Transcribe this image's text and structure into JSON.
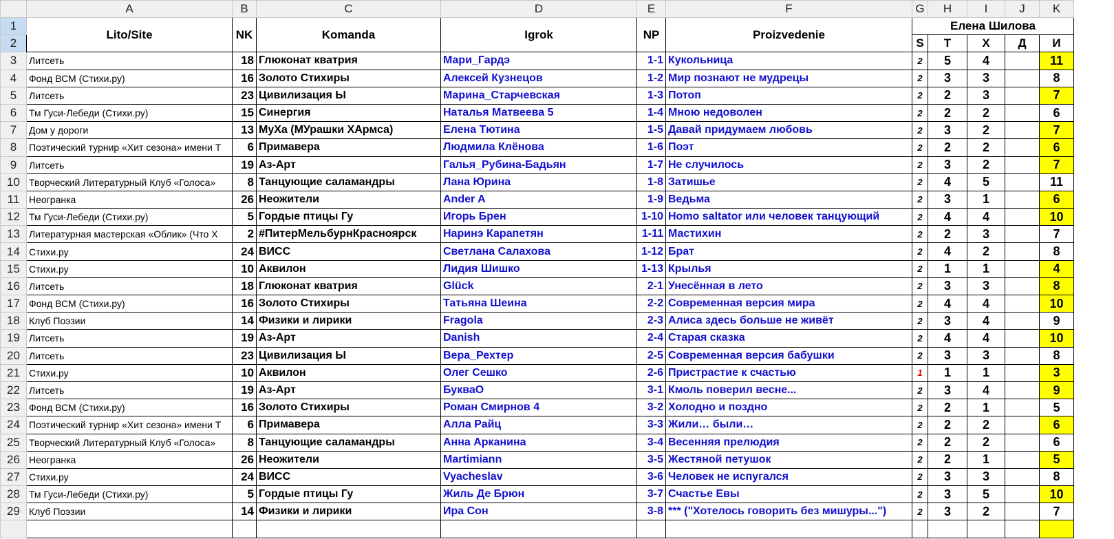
{
  "columns": [
    "A",
    "B",
    "C",
    "D",
    "E",
    "F",
    "G",
    "H",
    "I",
    "J",
    "K"
  ],
  "headers": {
    "lito": "Lito/Site",
    "nk": "NK",
    "komanda": "Komanda",
    "igrok": "Igrok",
    "np": "NP",
    "proizvedenie": "Proizvedenie",
    "judge": "Елена Шилова",
    "s": "S",
    "t": "T",
    "x": "Х",
    "d": "Д",
    "i": "И"
  },
  "highlight_color": "#ffff00",
  "rows": [
    {
      "n": "3",
      "lito": "Литсеть",
      "nk": "18",
      "komanda": "Глюконат кватрия",
      "igrok": "Мари_Гардэ",
      "np": "1-1",
      "work": "Кукольница",
      "s": "2",
      "t": "5",
      "x": "4",
      "d": "",
      "i": "11",
      "hi": true
    },
    {
      "n": "4",
      "lito": "Фонд ВСМ (Стихи.ру)",
      "nk": "16",
      "komanda": "Золото Стихиры",
      "igrok": "Алексей Кузнецов",
      "np": "1-2",
      "work": "Мир познают не мудрецы",
      "s": "2",
      "t": "3",
      "x": "3",
      "d": "",
      "i": "8",
      "hi": false
    },
    {
      "n": "5",
      "lito": "Литсеть",
      "nk": "23",
      "komanda": "Цивилизация Ы",
      "igrok": "Марина_Старчевская",
      "np": "1-3",
      "work": "Потоп",
      "s": "2",
      "t": "2",
      "x": "3",
      "d": "",
      "i": "7",
      "hi": true
    },
    {
      "n": "6",
      "lito": "Тм Гуси-Лебеди (Стихи.ру)",
      "nk": "15",
      "komanda": "Синергия",
      "igrok": "Наталья Матвеева 5",
      "np": "1-4",
      "work": "Мною недоволен",
      "s": "2",
      "t": "2",
      "x": "2",
      "d": "",
      "i": "6",
      "hi": false
    },
    {
      "n": "7",
      "lito": "Дом у дороги",
      "nk": "13",
      "komanda": "МуХа (МУрашки ХАрмса)",
      "igrok": "Елена Тютина",
      "np": "1-5",
      "work": "Давай придумаем любовь",
      "s": "2",
      "t": "3",
      "x": "2",
      "d": "",
      "i": "7",
      "hi": true
    },
    {
      "n": "8",
      "lito": "Поэтический турнир «Хит сезона» имени Т",
      "nk": "6",
      "komanda": "Примавера",
      "igrok": "Людмила Клёнова",
      "np": "1-6",
      "work": "Поэт",
      "s": "2",
      "t": "2",
      "x": "2",
      "d": "",
      "i": "6",
      "hi": true
    },
    {
      "n": "9",
      "lito": "Литсеть",
      "nk": "19",
      "komanda": "Аз-Арт",
      "igrok": "Галья_Рубина-Бадьян",
      "np": "1-7",
      "work": "Не случилось",
      "s": "2",
      "t": "3",
      "x": "2",
      "d": "",
      "i": "7",
      "hi": true
    },
    {
      "n": "10",
      "lito": "Творческий Литературный Клуб «Голоса»",
      "nk": "8",
      "komanda": "Танцующие саламандры",
      "igrok": "Лана Юрина",
      "np": "1-8",
      "work": "Затишье",
      "s": "2",
      "t": "4",
      "x": "5",
      "d": "",
      "i": "11",
      "hi": false
    },
    {
      "n": "11",
      "lito": "Неогранка",
      "nk": "26",
      "komanda": "Неожители",
      "igrok": "Ander A",
      "np": "1-9",
      "work": "Ведьма",
      "s": "2",
      "t": "3",
      "x": "1",
      "d": "",
      "i": "6",
      "hi": true
    },
    {
      "n": "12",
      "lito": "Тм Гуси-Лебеди (Стихи.ру)",
      "nk": "5",
      "komanda": "Гордые птицы Гу",
      "igrok": "Игорь Брен",
      "np": "1-10",
      "work": "Homo saltator или человек танцующий",
      "s": "2",
      "t": "4",
      "x": "4",
      "d": "",
      "i": "10",
      "hi": true
    },
    {
      "n": "13",
      "lito": "Литературная мастерская «Облик» (Что Х",
      "nk": "2",
      "komanda": "#ПитерМельбурнКрасноярск",
      "igrok": "Наринэ Карапетян",
      "np": "1-11",
      "work": "Мастихин",
      "s": "2",
      "t": "2",
      "x": "3",
      "d": "",
      "i": "7",
      "hi": false
    },
    {
      "n": "14",
      "lito": "Стихи.ру",
      "nk": "24",
      "komanda": "ВИСС",
      "igrok": "Светлана Салахова",
      "np": "1-12",
      "work": "Брат",
      "s": "2",
      "t": "4",
      "x": "2",
      "d": "",
      "i": "8",
      "hi": false
    },
    {
      "n": "15",
      "lito": "Стихи.ру",
      "nk": "10",
      "komanda": "Аквилон",
      "igrok": "Лидия Шишко",
      "np": "1-13",
      "work": "Крылья",
      "s": "2",
      "t": "1",
      "x": "1",
      "d": "",
      "i": "4",
      "hi": true
    },
    {
      "n": "16",
      "lito": "Литсеть",
      "nk": "18",
      "komanda": "Глюконат кватрия",
      "igrok": "Glück",
      "np": "2-1",
      "work": "Унесённая в лето",
      "s": "2",
      "t": "3",
      "x": "3",
      "d": "",
      "i": "8",
      "hi": true
    },
    {
      "n": "17",
      "lito": "Фонд ВСМ (Стихи.ру)",
      "nk": "16",
      "komanda": "Золото Стихиры",
      "igrok": "Татьяна Шеина",
      "np": "2-2",
      "work": "Современная версия мира",
      "s": "2",
      "t": "4",
      "x": "4",
      "d": "",
      "i": "10",
      "hi": true
    },
    {
      "n": "18",
      "lito": "Клуб Поэзии",
      "nk": "14",
      "komanda": "Физики и лирики",
      "igrok": "Fragola",
      "np": "2-3",
      "work": "Алиса здесь больше не живёт",
      "s": "2",
      "t": "3",
      "x": "4",
      "d": "",
      "i": "9",
      "hi": false
    },
    {
      "n": "19",
      "lito": "Литсеть",
      "nk": "19",
      "komanda": "Аз-Арт",
      "igrok": "Danish",
      "np": "2-4",
      "work": "Старая сказка",
      "s": "2",
      "t": "4",
      "x": "4",
      "d": "",
      "i": "10",
      "hi": true
    },
    {
      "n": "20",
      "lito": "Литсеть",
      "nk": "23",
      "komanda": "Цивилизация Ы",
      "igrok": "Вера_Рехтер",
      "np": "2-5",
      "work": "Современная версия бабушки",
      "s": "2",
      "t": "3",
      "x": "3",
      "d": "",
      "i": "8",
      "hi": false
    },
    {
      "n": "21",
      "lito": "Стихи.ру",
      "nk": "10",
      "komanda": "Аквилон",
      "igrok": "Олег Сешко",
      "np": "2-6",
      "work": "Пристрастие к счастью",
      "s": "1",
      "s_red": true,
      "t": "1",
      "x": "1",
      "d": "",
      "i": "3",
      "hi": true
    },
    {
      "n": "22",
      "lito": "Литсеть",
      "nk": "19",
      "komanda": "Аз-Арт",
      "igrok": "БукваО",
      "np": "3-1",
      "work": "Кмоль поверил весне...",
      "s": "2",
      "t": "3",
      "x": "4",
      "d": "",
      "i": "9",
      "hi": true
    },
    {
      "n": "23",
      "lito": "Фонд ВСМ (Стихи.ру)",
      "nk": "16",
      "komanda": "Золото Стихиры",
      "igrok": "Роман Смирнов 4",
      "np": "3-2",
      "work": "Холодно и поздно",
      "s": "2",
      "t": "2",
      "x": "1",
      "d": "",
      "i": "5",
      "hi": false
    },
    {
      "n": "24",
      "lito": "Поэтический турнир «Хит сезона» имени Т",
      "nk": "6",
      "komanda": "Примавера",
      "igrok": "Алла Райц",
      "np": "3-3",
      "work": "Жили… были…",
      "s": "2",
      "t": "2",
      "x": "2",
      "d": "",
      "i": "6",
      "hi": true
    },
    {
      "n": "25",
      "lito": "Творческий Литературный Клуб «Голоса»",
      "nk": "8",
      "komanda": "Танцующие саламандры",
      "igrok": "Анна Арканина",
      "np": "3-4",
      "work": "Весенняя прелюдия",
      "s": "2",
      "t": "2",
      "x": "2",
      "d": "",
      "i": "6",
      "hi": false
    },
    {
      "n": "26",
      "lito": "Неогранка",
      "nk": "26",
      "komanda": "Неожители",
      "igrok": "Martimiann",
      "np": "3-5",
      "work": "Жестяной петушок",
      "s": "2",
      "t": "2",
      "x": "1",
      "d": "",
      "i": "5",
      "hi": true
    },
    {
      "n": "27",
      "lito": "Стихи.ру",
      "nk": "24",
      "komanda": "ВИСС",
      "igrok": "Vyacheslav",
      "np": "3-6",
      "work": "Человек не испугался",
      "s": "2",
      "t": "3",
      "x": "3",
      "d": "",
      "i": "8",
      "hi": false
    },
    {
      "n": "28",
      "lito": "Тм Гуси-Лебеди (Стихи.ру)",
      "nk": "5",
      "komanda": "Гордые птицы Гу",
      "igrok": "Жиль Де Брюн",
      "np": "3-7",
      "work": "Счастье Евы",
      "s": "2",
      "t": "3",
      "x": "5",
      "d": "",
      "i": "10",
      "hi": true
    },
    {
      "n": "29",
      "lito": "Клуб Поэзии",
      "nk": "14",
      "komanda": "Физики и лирики",
      "igrok": "Ира Сон",
      "np": "3-8",
      "work": "*** (\"Хотелось говорить без мишуры...\")",
      "s": "2",
      "t": "3",
      "x": "2",
      "d": "",
      "i": "7",
      "hi": false
    },
    {
      "n": "",
      "lito": "",
      "nk": "",
      "komanda": "",
      "igrok": "",
      "np": "",
      "work": "",
      "s": "",
      "t": "",
      "x": "",
      "d": "",
      "i": "",
      "hi": true
    }
  ]
}
